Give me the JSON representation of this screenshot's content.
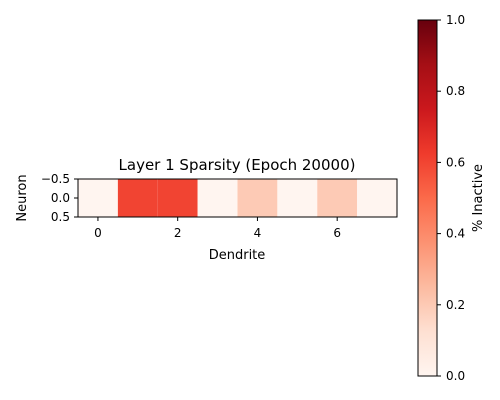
{
  "chart_data": {
    "type": "heatmap",
    "title": "Layer 1 Sparsity (Epoch 20000)",
    "xlabel": "Dendrite",
    "ylabel": "Neuron",
    "colorbar_label": "% Inactive",
    "colormap": "Reds",
    "x": [
      0,
      1,
      2,
      3,
      4,
      5,
      6,
      7
    ],
    "y": [
      0
    ],
    "values": [
      [
        0.0,
        0.6,
        0.6,
        0.0,
        0.2,
        0.0,
        0.2,
        0.0
      ]
    ],
    "xlim": [
      -0.5,
      7.5
    ],
    "ylim": [
      -0.5,
      0.5
    ],
    "x_ticks": [
      "0",
      "2",
      "4",
      "6"
    ],
    "y_ticks": [
      "−0.5",
      "0.0",
      "0.5"
    ],
    "colorbar_range": [
      0.0,
      1.0
    ],
    "colorbar_ticks": [
      "0.0",
      "0.2",
      "0.4",
      "0.6",
      "0.8",
      "1.0"
    ],
    "grid": false,
    "legend": "none"
  }
}
